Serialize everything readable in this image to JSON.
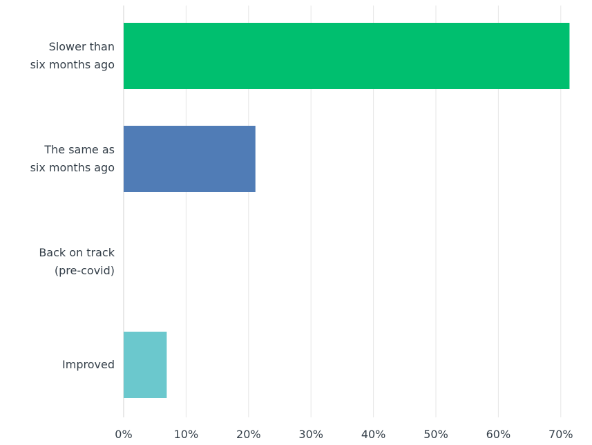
{
  "chart_data": {
    "type": "bar",
    "orientation": "horizontal",
    "categories": [
      [
        "Slower than",
        "six months ago"
      ],
      [
        "The same as",
        "six months ago"
      ],
      [
        "Back on track",
        "(pre-covid)"
      ],
      [
        "Improved"
      ]
    ],
    "values": [
      71.4,
      21.1,
      0,
      6.9
    ],
    "colors": [
      "#00bf6f",
      "#507cb6",
      "#f9be00",
      "#6bc8cd"
    ],
    "xlim": [
      0,
      75
    ],
    "ticks": [
      0,
      10,
      20,
      30,
      40,
      50,
      60,
      70
    ],
    "tick_format": "{v}%",
    "grid": true,
    "gridline_color": "#e5e5e5",
    "axis_color": "#d0d0d0",
    "title": "",
    "xlabel": "",
    "ylabel": ""
  }
}
